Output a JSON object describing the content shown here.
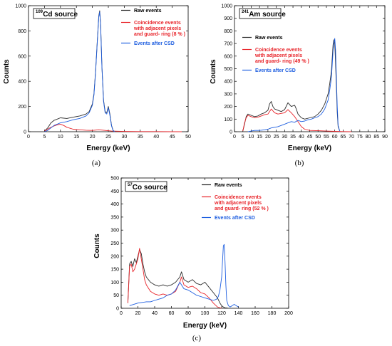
{
  "chart_data": [
    {
      "type": "line",
      "panel_caption": "(a)",
      "source_label": {
        "mass_number": "109",
        "rest": "Cd source"
      },
      "xlabel": "Energy (keV)",
      "ylabel": "Counts",
      "xlim": [
        0,
        50
      ],
      "ylim": [
        0,
        1000
      ],
      "x_ticks": [
        0,
        5,
        10,
        15,
        20,
        25,
        30,
        35,
        40,
        45,
        50
      ],
      "y_ticks": [
        0,
        200,
        400,
        600,
        800,
        1000
      ],
      "legend": [
        {
          "label": "Raw events",
          "color": "#2b2b2b"
        },
        {
          "label": "Coincidence events\nwith adjacent pixels\nand guard- ring  (8 % )",
          "color": "#e8242a"
        },
        {
          "label": "Events after CSD",
          "color": "#1f5fe0"
        }
      ],
      "series": [
        {
          "color": "#2b2b2b",
          "x": [
            5,
            6,
            7,
            8,
            9,
            10,
            12,
            14,
            16,
            18,
            19,
            20,
            20.5,
            21,
            21.5,
            22,
            22.3,
            22.6,
            23,
            23.5,
            24,
            24.5,
            25,
            25.5,
            26,
            26.5,
            27
          ],
          "y": [
            5,
            30,
            70,
            90,
            100,
            110,
            105,
            115,
            125,
            140,
            160,
            220,
            300,
            480,
            700,
            920,
            960,
            850,
            520,
            250,
            160,
            150,
            200,
            140,
            50,
            10,
            0
          ]
        },
        {
          "color": "#e8242a",
          "x": [
            5,
            6,
            7,
            8,
            9,
            10,
            11,
            12,
            14,
            16,
            18,
            20,
            22,
            24,
            26,
            30,
            35,
            40,
            45,
            48
          ],
          "y": [
            5,
            20,
            35,
            45,
            55,
            60,
            50,
            35,
            20,
            15,
            12,
            10,
            15,
            10,
            5,
            2,
            1,
            1,
            0,
            0
          ]
        },
        {
          "color": "#1f5fe0",
          "x": [
            5,
            6,
            7,
            8,
            9,
            10,
            12,
            14,
            16,
            18,
            19,
            20,
            20.5,
            21,
            21.5,
            22,
            22.3,
            22.6,
            23,
            23.5,
            24,
            24.5,
            25,
            25.5,
            26,
            26.5,
            27
          ],
          "y": [
            0,
            10,
            30,
            50,
            60,
            70,
            80,
            95,
            105,
            125,
            150,
            210,
            290,
            470,
            690,
            910,
            950,
            840,
            510,
            240,
            150,
            140,
            190,
            130,
            45,
            8,
            0
          ]
        }
      ]
    },
    {
      "type": "line",
      "panel_caption": "(b)",
      "source_label": {
        "mass_number": "241",
        "rest": "Am source"
      },
      "xlabel": "Energy (keV)",
      "ylabel": "Counts",
      "xlim": [
        0,
        90
      ],
      "ylim": [
        0,
        1000
      ],
      "x_ticks": [
        0,
        5,
        10,
        15,
        20,
        25,
        30,
        35,
        40,
        45,
        50,
        55,
        60,
        65,
        70,
        75,
        80,
        85,
        90
      ],
      "y_ticks": [
        0,
        100,
        200,
        300,
        400,
        500,
        600,
        700,
        800,
        900,
        1000
      ],
      "legend": [
        {
          "label": "Raw events",
          "color": "#2b2b2b"
        },
        {
          "label": "Coincidence events\nwith adjacent pixels\nand guard- ring  (49 % )",
          "color": "#e8242a"
        },
        {
          "label": "Events after CSD",
          "color": "#1f5fe0"
        }
      ],
      "series": [
        {
          "color": "#2b2b2b",
          "x": [
            5,
            6,
            7,
            8,
            10,
            12,
            14,
            16,
            18,
            20,
            21,
            22,
            23,
            24,
            26,
            28,
            30,
            32,
            34,
            36,
            37,
            38,
            40,
            42,
            45,
            48,
            50,
            52,
            54,
            56,
            57,
            58,
            58.5,
            59,
            59.5,
            60,
            60.5,
            61,
            61.5,
            62,
            63
          ],
          "y": [
            5,
            60,
            120,
            140,
            130,
            120,
            125,
            140,
            150,
            170,
            220,
            240,
            200,
            180,
            170,
            160,
            175,
            230,
            200,
            210,
            180,
            140,
            110,
            100,
            110,
            120,
            140,
            170,
            220,
            300,
            380,
            480,
            580,
            690,
            730,
            700,
            550,
            350,
            150,
            40,
            5
          ]
        },
        {
          "color": "#e8242a",
          "x": [
            5,
            6,
            7,
            8,
            10,
            12,
            14,
            16,
            18,
            20,
            22,
            24,
            26,
            28,
            30,
            32,
            34,
            36,
            38,
            40,
            42,
            45,
            50,
            55,
            60,
            62,
            65,
            70
          ],
          "y": [
            5,
            70,
            110,
            130,
            120,
            110,
            115,
            125,
            135,
            140,
            180,
            150,
            140,
            145,
            150,
            175,
            150,
            120,
            80,
            40,
            20,
            10,
            8,
            5,
            3,
            2,
            1,
            0
          ]
        },
        {
          "color": "#1f5fe0",
          "x": [
            8,
            10,
            12,
            14,
            16,
            18,
            20,
            22,
            24,
            26,
            28,
            30,
            32,
            34,
            36,
            38,
            40,
            42,
            44,
            46,
            48,
            50,
            52,
            54,
            56,
            57,
            58,
            58.5,
            59,
            59.5,
            60,
            60.5,
            61,
            61.5,
            62,
            63
          ],
          "y": [
            0,
            5,
            10,
            10,
            12,
            15,
            20,
            30,
            35,
            40,
            50,
            60,
            70,
            80,
            75,
            90,
            80,
            85,
            95,
            100,
            110,
            120,
            140,
            180,
            250,
            330,
            430,
            530,
            640,
            700,
            740,
            650,
            420,
            200,
            50,
            5
          ]
        }
      ]
    },
    {
      "type": "line",
      "panel_caption": "(c)",
      "source_label": {
        "mass_number": "57",
        "rest": "Co source"
      },
      "xlabel": "Energy (keV)",
      "ylabel": "Counts",
      "xlim": [
        0,
        200
      ],
      "ylim": [
        0,
        500
      ],
      "x_ticks": [
        0,
        20,
        40,
        60,
        80,
        100,
        120,
        140,
        160,
        180,
        200
      ],
      "y_ticks": [
        0,
        50,
        100,
        150,
        200,
        250,
        300,
        350,
        400,
        450,
        500
      ],
      "legend": [
        {
          "label": "Raw events",
          "color": "#2b2b2b"
        },
        {
          "label": "Coincidence events\nwith adjacent pixels\nand guard- ring  (52 % )",
          "color": "#e8242a"
        },
        {
          "label": "Events after CSD",
          "color": "#1f5fe0"
        }
      ],
      "series": [
        {
          "color": "#2b2b2b",
          "x": [
            8,
            10,
            12,
            14,
            16,
            18,
            20,
            22,
            24,
            26,
            28,
            30,
            35,
            40,
            45,
            50,
            55,
            60,
            65,
            70,
            72,
            75,
            80,
            85,
            90,
            95,
            100,
            105,
            110,
            115,
            118,
            120,
            122,
            124,
            126,
            128
          ],
          "y": [
            20,
            170,
            180,
            160,
            190,
            175,
            200,
            225,
            210,
            170,
            140,
            120,
            100,
            90,
            85,
            90,
            85,
            90,
            100,
            120,
            140,
            110,
            100,
            110,
            95,
            90,
            100,
            80,
            60,
            40,
            20,
            10,
            5,
            2,
            1,
            0
          ]
        },
        {
          "color": "#e8242a",
          "x": [
            8,
            10,
            12,
            14,
            16,
            18,
            20,
            22,
            24,
            26,
            28,
            30,
            35,
            40,
            45,
            50,
            55,
            60,
            65,
            70,
            72,
            75,
            80,
            85,
            90,
            95,
            100,
            105,
            110,
            115,
            120
          ],
          "y": [
            20,
            160,
            170,
            140,
            150,
            170,
            190,
            230,
            190,
            150,
            110,
            90,
            65,
            55,
            50,
            55,
            50,
            55,
            65,
            100,
            120,
            90,
            80,
            85,
            75,
            60,
            55,
            40,
            20,
            5,
            0
          ]
        },
        {
          "color": "#1f5fe0",
          "x": [
            10,
            20,
            30,
            35,
            40,
            45,
            50,
            55,
            60,
            65,
            70,
            72,
            75,
            80,
            85,
            90,
            95,
            100,
            105,
            110,
            114,
            116,
            118,
            120,
            121,
            122,
            123,
            124,
            125,
            126,
            128,
            130,
            135,
            140
          ],
          "y": [
            10,
            20,
            25,
            25,
            30,
            35,
            40,
            50,
            55,
            70,
            100,
            90,
            75,
            70,
            60,
            50,
            45,
            40,
            35,
            30,
            35,
            45,
            70,
            120,
            180,
            240,
            245,
            180,
            90,
            30,
            10,
            5,
            15,
            5
          ]
        }
      ]
    }
  ]
}
